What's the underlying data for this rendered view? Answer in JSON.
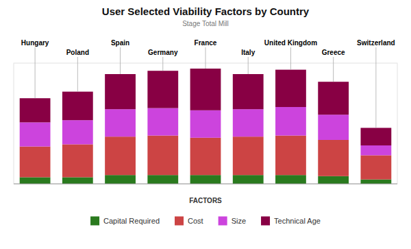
{
  "chart_data": {
    "type": "bar",
    "stacked": true,
    "title": "User Selected Viability Factors by Country",
    "subtitle": "Stage Total Mill",
    "legend_title": "FACTORS",
    "categories": [
      "Hungary",
      "Poland",
      "Spain",
      "Germany",
      "France",
      "Italy",
      "United Kingdom",
      "Greece",
      "Switzerland"
    ],
    "series": [
      {
        "name": "Capital Required",
        "color": "#2a7a1e",
        "values": [
          0.06,
          0.06,
          0.08,
          0.08,
          0.08,
          0.08,
          0.08,
          0.07,
          0.04
        ]
      },
      {
        "name": "Cost",
        "color": "#cc4444",
        "values": [
          0.28,
          0.3,
          0.35,
          0.36,
          0.34,
          0.35,
          0.36,
          0.33,
          0.22
        ]
      },
      {
        "name": "Size",
        "color": "#cc44dd",
        "values": [
          0.22,
          0.22,
          0.25,
          0.25,
          0.25,
          0.25,
          0.26,
          0.23,
          0.09
        ]
      },
      {
        "name": "Technical Age",
        "color": "#880044",
        "values": [
          0.22,
          0.26,
          0.32,
          0.34,
          0.38,
          0.32,
          0.34,
          0.3,
          0.16
        ]
      }
    ],
    "ylim": [
      0,
      1.1
    ],
    "tick_labels": false,
    "grid": false,
    "legend": "bottom"
  }
}
